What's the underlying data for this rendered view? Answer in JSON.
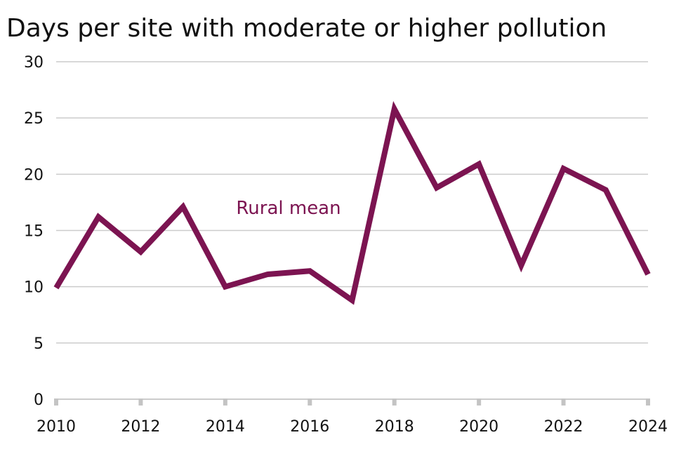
{
  "colors": {
    "series": "#7c1451",
    "grid": "#cccccc",
    "text": "#111111",
    "axis_tick": "#c4c4c4"
  },
  "chart_data": {
    "type": "line",
    "title": "Days per site with moderate or higher pollution",
    "xlabel": "",
    "ylabel": "",
    "x": [
      2010,
      2011,
      2012,
      2013,
      2014,
      2015,
      2016,
      2017,
      2018,
      2019,
      2020,
      2021,
      2022,
      2023,
      2024
    ],
    "series": [
      {
        "name": "Rural mean",
        "values": [
          9.9,
          16.2,
          13.1,
          17.1,
          10.0,
          11.1,
          11.4,
          8.8,
          25.8,
          18.8,
          20.9,
          11.9,
          20.5,
          18.6,
          11.1
        ]
      }
    ],
    "ylim": [
      0,
      30
    ],
    "yticks": [
      0,
      5,
      10,
      15,
      20,
      25,
      30
    ],
    "xlim": [
      2010,
      2024
    ],
    "xticks": [
      2010,
      2012,
      2014,
      2016,
      2018,
      2020,
      2022,
      2024
    ],
    "grid": true,
    "legend": "inline-label"
  }
}
